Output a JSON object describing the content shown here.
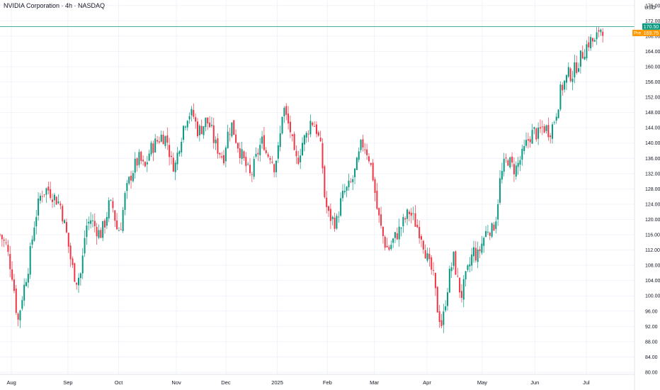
{
  "header": {
    "title": "NVIDIA Corporation · 4h · NASDAQ"
  },
  "chart_data": {
    "type": "candlestick",
    "currency": "USD",
    "ylim": [
      80,
      178
    ],
    "y_ticks": [
      80,
      84,
      88,
      92,
      96,
      100,
      104,
      108,
      112,
      116,
      120,
      124,
      128,
      132,
      136,
      140,
      144,
      148,
      152,
      156,
      160,
      164,
      168,
      172,
      176
    ],
    "y_tick_labels": [
      "80.00",
      "84.00",
      "88.00",
      "92.00",
      "96.00",
      "100.00",
      "104.00",
      "108.00",
      "112.00",
      "116.00",
      "120.00",
      "124.00",
      "128.00",
      "132.00",
      "136.00",
      "140.00",
      "144.00",
      "148.00",
      "152.00",
      "156.00",
      "160.00",
      "164.00",
      "168.00",
      "172.00",
      "176.00"
    ],
    "x_labels": [
      "Aug",
      "Sep",
      "Oct",
      "Nov",
      "Dec",
      "2025",
      "Feb",
      "Mar",
      "Apr",
      "May",
      "Jun",
      "Jul"
    ],
    "x_label_t": [
      0.018,
      0.107,
      0.187,
      0.278,
      0.356,
      0.437,
      0.516,
      0.59,
      0.673,
      0.76,
      0.843,
      0.924
    ],
    "last_price": {
      "label": "170.50",
      "value": 170.5,
      "color": "#089981"
    },
    "premarket": {
      "tag": "Pre",
      "label": "169.75",
      "value": 169.75,
      "color": "#ff9800"
    },
    "up_color": "#089981",
    "down_color": "#f23645",
    "price_path": [
      [
        0.0,
        116
      ],
      [
        0.01,
        113
      ],
      [
        0.02,
        105
      ],
      [
        0.028,
        93
      ],
      [
        0.035,
        100
      ],
      [
        0.045,
        108
      ],
      [
        0.055,
        120
      ],
      [
        0.065,
        127
      ],
      [
        0.075,
        128
      ],
      [
        0.085,
        126
      ],
      [
        0.095,
        124
      ],
      [
        0.105,
        116
      ],
      [
        0.113,
        108
      ],
      [
        0.12,
        104
      ],
      [
        0.128,
        106
      ],
      [
        0.135,
        118
      ],
      [
        0.143,
        120
      ],
      [
        0.15,
        118
      ],
      [
        0.158,
        116
      ],
      [
        0.165,
        119
      ],
      [
        0.172,
        124
      ],
      [
        0.178,
        123
      ],
      [
        0.185,
        117
      ],
      [
        0.19,
        118
      ],
      [
        0.197,
        126
      ],
      [
        0.205,
        131
      ],
      [
        0.212,
        134
      ],
      [
        0.22,
        136
      ],
      [
        0.228,
        133
      ],
      [
        0.236,
        138
      ],
      [
        0.245,
        140
      ],
      [
        0.255,
        142
      ],
      [
        0.263,
        141
      ],
      [
        0.27,
        135
      ],
      [
        0.276,
        134
      ],
      [
        0.283,
        140
      ],
      [
        0.29,
        145
      ],
      [
        0.297,
        148
      ],
      [
        0.305,
        147
      ],
      [
        0.312,
        143
      ],
      [
        0.318,
        144
      ],
      [
        0.325,
        146
      ],
      [
        0.332,
        144
      ],
      [
        0.338,
        140
      ],
      [
        0.345,
        138
      ],
      [
        0.352,
        136
      ],
      [
        0.358,
        142
      ],
      [
        0.365,
        145
      ],
      [
        0.372,
        141
      ],
      [
        0.378,
        138
      ],
      [
        0.385,
        135
      ],
      [
        0.39,
        133
      ],
      [
        0.395,
        131
      ],
      [
        0.402,
        135
      ],
      [
        0.409,
        139
      ],
      [
        0.415,
        141
      ],
      [
        0.42,
        137
      ],
      [
        0.426,
        137
      ],
      [
        0.432,
        134
      ],
      [
        0.44,
        139
      ],
      [
        0.446,
        150
      ],
      [
        0.452,
        146
      ],
      [
        0.458,
        143
      ],
      [
        0.465,
        135
      ],
      [
        0.47,
        136
      ],
      [
        0.476,
        140
      ],
      [
        0.483,
        142
      ],
      [
        0.49,
        146
      ],
      [
        0.495,
        145
      ],
      [
        0.5,
        143
      ],
      [
        0.507,
        137
      ],
      [
        0.512,
        125
      ],
      [
        0.518,
        121
      ],
      [
        0.524,
        120
      ],
      [
        0.53,
        119
      ],
      [
        0.536,
        124
      ],
      [
        0.542,
        127
      ],
      [
        0.548,
        128
      ],
      [
        0.555,
        130
      ],
      [
        0.562,
        134
      ],
      [
        0.57,
        140
      ],
      [
        0.576,
        139
      ],
      [
        0.582,
        136
      ],
      [
        0.588,
        131
      ],
      [
        0.594,
        123
      ],
      [
        0.6,
        118
      ],
      [
        0.606,
        114
      ],
      [
        0.612,
        112
      ],
      [
        0.618,
        114
      ],
      [
        0.625,
        116
      ],
      [
        0.632,
        118
      ],
      [
        0.638,
        120
      ],
      [
        0.645,
        122
      ],
      [
        0.652,
        120
      ],
      [
        0.658,
        118
      ],
      [
        0.664,
        116
      ],
      [
        0.67,
        112
      ],
      [
        0.676,
        108
      ],
      [
        0.682,
        106
      ],
      [
        0.69,
        96
      ],
      [
        0.697,
        92
      ],
      [
        0.703,
        100
      ],
      [
        0.709,
        106
      ],
      [
        0.715,
        110
      ],
      [
        0.721,
        104
      ],
      [
        0.727,
        100
      ],
      [
        0.733,
        104
      ],
      [
        0.74,
        108
      ],
      [
        0.746,
        112
      ],
      [
        0.752,
        110
      ],
      [
        0.758,
        113
      ],
      [
        0.764,
        116
      ],
      [
        0.77,
        118
      ],
      [
        0.776,
        117
      ],
      [
        0.782,
        121
      ],
      [
        0.788,
        130
      ],
      [
        0.794,
        134
      ],
      [
        0.8,
        136
      ],
      [
        0.806,
        134
      ],
      [
        0.812,
        133
      ],
      [
        0.818,
        135
      ],
      [
        0.824,
        137
      ],
      [
        0.83,
        140
      ],
      [
        0.836,
        142
      ],
      [
        0.842,
        143
      ],
      [
        0.848,
        142
      ],
      [
        0.854,
        144
      ],
      [
        0.86,
        144
      ],
      [
        0.866,
        143
      ],
      [
        0.872,
        145
      ],
      [
        0.878,
        149
      ],
      [
        0.884,
        154
      ],
      [
        0.89,
        156
      ],
      [
        0.896,
        158
      ],
      [
        0.902,
        158
      ],
      [
        0.908,
        160
      ],
      [
        0.914,
        162
      ],
      [
        0.92,
        164
      ],
      [
        0.926,
        166
      ],
      [
        0.932,
        167
      ],
      [
        0.938,
        166
      ],
      [
        0.944,
        170
      ],
      [
        0.95,
        170
      ]
    ]
  }
}
